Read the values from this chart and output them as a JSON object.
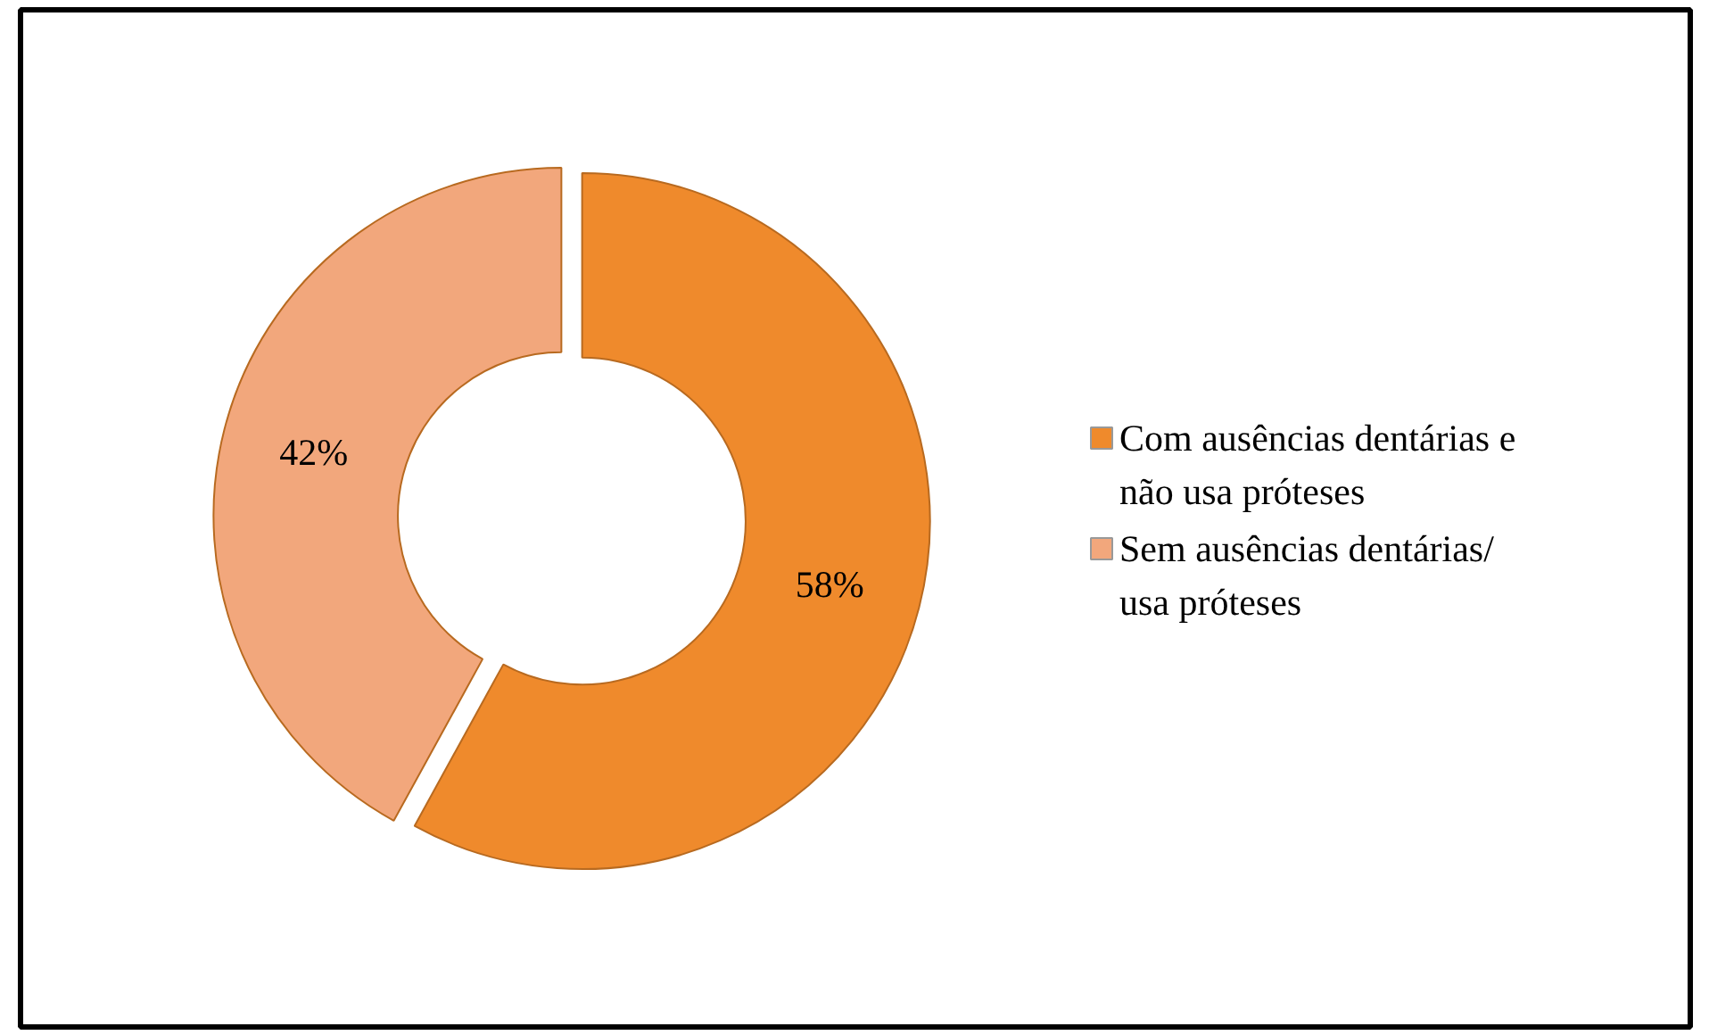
{
  "chart_data": {
    "type": "donut",
    "categories": [
      "Com ausências dentárias e não usa próteses",
      "Sem ausências dentárias/ usa próteses"
    ],
    "values": [
      58,
      42
    ],
    "colors": [
      "#ef8a2c",
      "#f2a77c"
    ],
    "value_labels": [
      "58%",
      "42%"
    ],
    "legend": "right"
  }
}
